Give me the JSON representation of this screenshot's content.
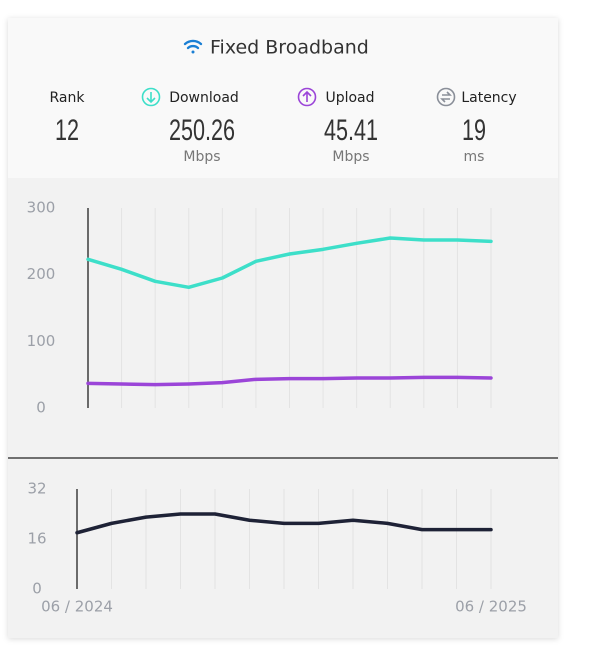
{
  "header": {
    "title": "Fixed Broadband",
    "stats": [
      {
        "label": "Rank",
        "value": 12
      },
      {
        "label": "Download",
        "value": 250.26,
        "unit": "Mbps"
      },
      {
        "label": "Upload",
        "value": 45.41,
        "unit": "Mbps"
      },
      {
        "label": "Latency",
        "value": 19,
        "unit": "ms"
      }
    ]
  },
  "chart_data": [
    {
      "type": "line",
      "ylim": [
        0,
        300
      ],
      "yticks": [
        0,
        100,
        200,
        300
      ],
      "grid": true,
      "series": [
        {
          "name": "Download",
          "color": "#3ddfc9",
          "values": [
            223,
            208,
            190,
            181,
            195,
            220,
            231,
            238,
            247,
            255,
            252,
            252,
            250
          ]
        },
        {
          "name": "Upload",
          "color": "#9b45d8",
          "values": [
            37,
            36,
            35,
            36,
            38,
            43,
            44,
            44,
            45,
            45,
            46,
            46,
            45
          ]
        }
      ]
    },
    {
      "type": "line",
      "ylim": [
        0,
        32
      ],
      "yticks": [
        0,
        16,
        32
      ],
      "grid": true,
      "categories": [
        "06 / 2024",
        null,
        null,
        null,
        null,
        null,
        null,
        null,
        null,
        null,
        null,
        null,
        "06 / 2025"
      ],
      "series": [
        {
          "name": "Latency",
          "color": "#1e2236",
          "values": [
            18,
            21,
            23,
            24,
            24,
            22,
            21,
            21,
            22,
            21,
            19,
            19,
            19
          ]
        }
      ]
    }
  ]
}
